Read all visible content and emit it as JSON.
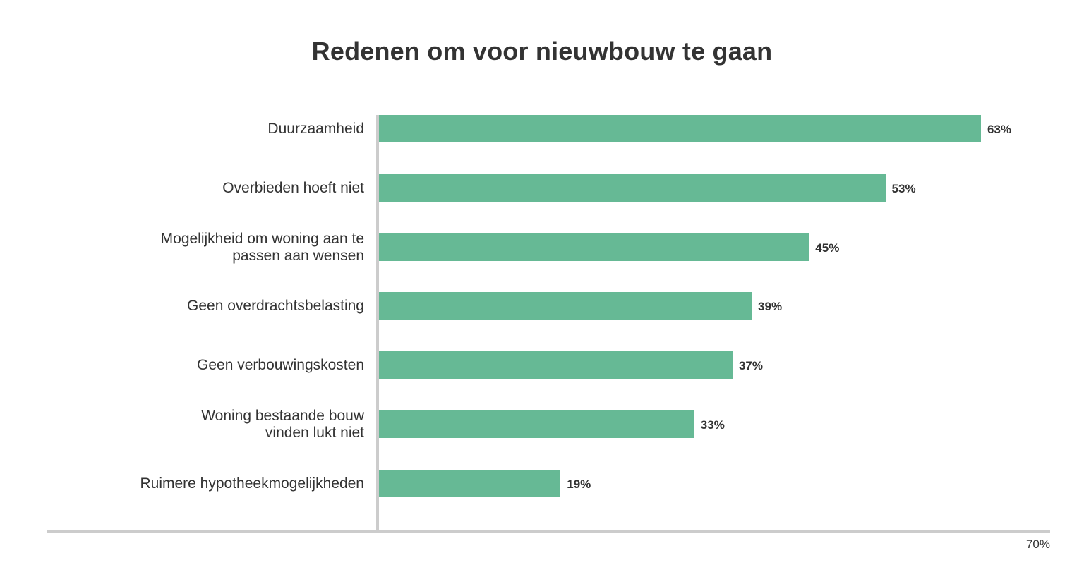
{
  "chart_data": {
    "type": "bar",
    "orientation": "horizontal",
    "title": "Redenen om voor nieuwbouw te gaan",
    "xlabel": "",
    "ylabel": "",
    "xlim": [
      0,
      70
    ],
    "x_tick_labels": [
      "70%"
    ],
    "grid": false,
    "legend": null,
    "categories": [
      "Duurzaamheid",
      "Overbieden hoeft niet",
      "Mogelijkheid om woning aan te passen aan wensen",
      "Geen overdrachtsbelasting",
      "Geen verbouwingskosten",
      "Woning bestaande bouw vinden lukt niet",
      "Ruimere hypotheekmogelijkheden"
    ],
    "values": [
      63,
      53,
      45,
      39,
      37,
      33,
      19
    ],
    "value_labels": [
      "63%",
      "53%",
      "45%",
      "39%",
      "37%",
      "33%",
      "19%"
    ],
    "bar_color": "#66b995"
  },
  "rows": [
    {
      "label_line1": "Duurzaamheid",
      "label_line2": "",
      "value": 63,
      "value_label": "63%"
    },
    {
      "label_line1": "Overbieden hoeft niet",
      "label_line2": "",
      "value": 53,
      "value_label": "53%"
    },
    {
      "label_line1": "Mogelijkheid om woning aan te",
      "label_line2": "passen aan wensen",
      "value": 45,
      "value_label": "45%"
    },
    {
      "label_line1": "Geen overdrachtsbelasting",
      "label_line2": "",
      "value": 39,
      "value_label": "39%"
    },
    {
      "label_line1": "Geen verbouwingskosten",
      "label_line2": "",
      "value": 37,
      "value_label": "37%"
    },
    {
      "label_line1": "Woning bestaande bouw",
      "label_line2": "vinden lukt niet",
      "value": 33,
      "value_label": "33%"
    },
    {
      "label_line1": "Ruimere hypotheekmogelijkheden",
      "label_line2": "",
      "value": 19,
      "value_label": "19%"
    }
  ],
  "axis": {
    "max_label": "70%",
    "max": 70
  }
}
